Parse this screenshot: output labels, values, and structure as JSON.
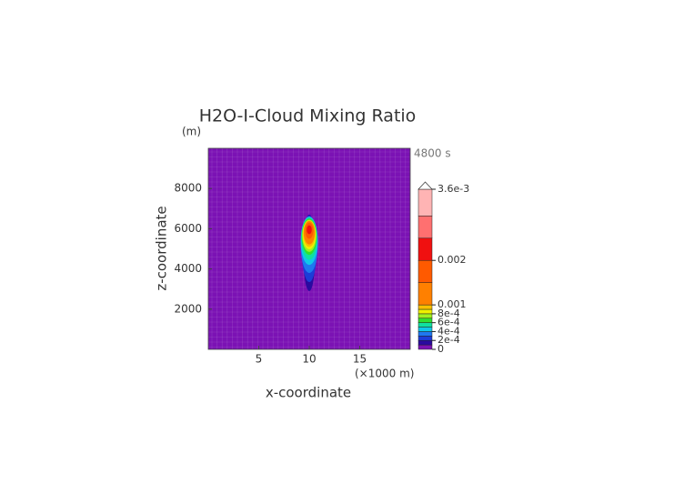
{
  "chart_data": {
    "type": "contour",
    "title": "H2O-I-Cloud Mixing Ratio",
    "y_unit": "(m)",
    "time_label": "4800 s",
    "x_unit": "(×1000 m)",
    "xlabel": "x-coordinate",
    "ylabel": "z-coordinate",
    "background_color": "#7b12b4",
    "xlim": [
      0,
      20
    ],
    "xticks": [
      5,
      10,
      15
    ],
    "ylim": [
      0,
      10000
    ],
    "yticks": [
      2000,
      4000,
      6000,
      8000
    ],
    "grid": true,
    "levels": [
      0,
      0.0001,
      0.0002,
      0.0003,
      0.0004,
      0.0005,
      0.0006,
      0.0007,
      0.0008,
      0.0009,
      0.001,
      0.0015,
      0.002,
      0.0025,
      0.003,
      0.0036
    ],
    "level_colors": [
      "#7b12b4",
      "#2a0aa0",
      "#1d3cd8",
      "#1f78f0",
      "#10c8e8",
      "#10e0a0",
      "#30e030",
      "#a0f020",
      "#f0f000",
      "#f8c000",
      "#ff8000",
      "#ff5a00",
      "#f01010",
      "#ff7070",
      "#ffb4b4"
    ],
    "extend": "max",
    "colorbar_ticks": [
      0,
      {
        "value": 0.0002,
        "label": "2e-4"
      },
      {
        "value": 0.0004,
        "label": "4e-4"
      },
      {
        "value": 0.0006,
        "label": "6e-4"
      },
      {
        "value": 0.0008,
        "label": "8e-4"
      },
      0.001,
      0.002,
      {
        "value": 0.0036,
        "label": "3.6e-3"
      }
    ],
    "contours": [
      {
        "level": 0.0001,
        "x": 10,
        "z": 4800,
        "rx": 0.6,
        "rz": 1900,
        "color": "#2a0aa0"
      },
      {
        "level": 0.0002,
        "x": 10,
        "z": 5000,
        "rx": 0.75,
        "rz": 1650,
        "color": "#1d3cd8"
      },
      {
        "level": 0.0003,
        "x": 10,
        "z": 5200,
        "rx": 0.85,
        "rz": 1400,
        "color": "#1f78f0"
      },
      {
        "level": 0.0004,
        "x": 10,
        "z": 5400,
        "rx": 0.85,
        "rz": 1200,
        "color": "#10c8e8"
      },
      {
        "level": 0.0005,
        "x": 10,
        "z": 5500,
        "rx": 0.8,
        "rz": 1050,
        "color": "#10e0a0"
      },
      {
        "level": 0.0006,
        "x": 10,
        "z": 5600,
        "rx": 0.75,
        "rz": 900,
        "color": "#30e030"
      },
      {
        "level": 0.0007,
        "x": 10,
        "z": 5650,
        "rx": 0.7,
        "rz": 800,
        "color": "#a0f020"
      },
      {
        "level": 0.0008,
        "x": 10,
        "z": 5700,
        "rx": 0.65,
        "rz": 720,
        "color": "#f0f000"
      },
      {
        "level": 0.0009,
        "x": 10,
        "z": 5750,
        "rx": 0.6,
        "rz": 650,
        "color": "#f8c000"
      },
      {
        "level": 0.001,
        "x": 10,
        "z": 5800,
        "rx": 0.55,
        "rz": 580,
        "color": "#ff8000"
      },
      {
        "level": 0.0015,
        "x": 10,
        "z": 5900,
        "rx": 0.4,
        "rz": 400,
        "color": "#ff5a00"
      },
      {
        "level": 0.002,
        "x": 10,
        "z": 5950,
        "rx": 0.25,
        "rz": 220,
        "color": "#f01010"
      }
    ]
  }
}
